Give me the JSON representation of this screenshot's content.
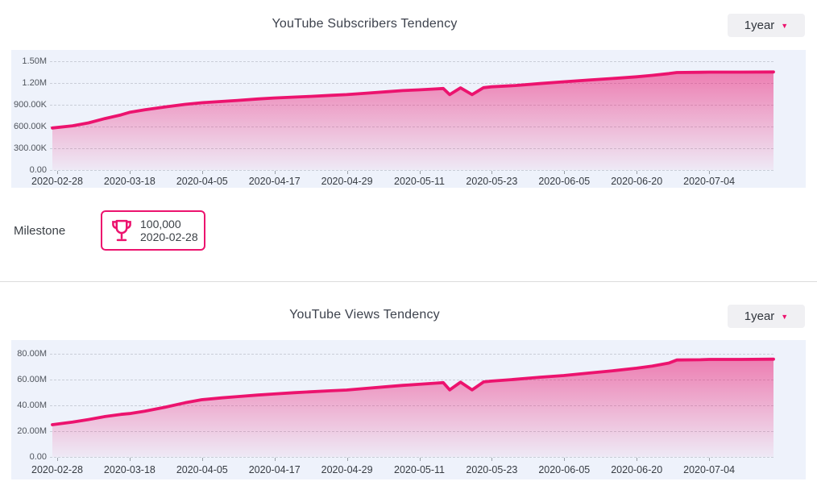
{
  "colors": {
    "accent": "#ec136e",
    "panel_background": "#eef2fb",
    "dropdown_background": "#f0f0f3",
    "gridline": "#c9ced8"
  },
  "sections": [
    {
      "title": "YouTube Subscribers Tendency",
      "range_selector": {
        "value": "1year",
        "icon": "caret-down-icon"
      }
    },
    {
      "title": "YouTube Views Tendency",
      "range_selector": {
        "value": "1year",
        "icon": "caret-down-icon"
      }
    }
  ],
  "milestone": {
    "label": "Milestone",
    "icon": "trophy-icon",
    "value": "100,000",
    "date": "2020-02-28"
  },
  "chart_data": [
    {
      "type": "area",
      "title": "YouTube Subscribers Tendency",
      "xlabel": "",
      "ylabel": "",
      "ylim": [
        0,
        1500000
      ],
      "grid": "horizontal dashed",
      "legend": "none",
      "x_labels": [
        "2020-02-28",
        "2020-03-18",
        "2020-04-05",
        "2020-04-17",
        "2020-04-29",
        "2020-05-11",
        "2020-05-23",
        "2020-06-05",
        "2020-06-20",
        "2020-07-04"
      ],
      "y_ticks": [
        "1.50M",
        "1.20M",
        "900.00K",
        "600.00K",
        "300.00K",
        "0.00"
      ],
      "y_tick_values": [
        1500000,
        1200000,
        900000,
        600000,
        300000,
        0
      ],
      "series": [
        {
          "name": "subscribers",
          "color": "#ec136e",
          "points_xfrac_value": [
            [
              0.0,
              580000
            ],
            [
              0.028,
              610000
            ],
            [
              0.05,
              650000
            ],
            [
              0.073,
              710000
            ],
            [
              0.095,
              760000
            ],
            [
              0.107,
              795000
            ],
            [
              0.128,
              830000
            ],
            [
              0.156,
              870000
            ],
            [
              0.184,
              905000
            ],
            [
              0.207,
              928000
            ],
            [
              0.235,
              945000
            ],
            [
              0.257,
              960000
            ],
            [
              0.285,
              980000
            ],
            [
              0.307,
              993000
            ],
            [
              0.335,
              1005000
            ],
            [
              0.358,
              1015000
            ],
            [
              0.386,
              1030000
            ],
            [
              0.408,
              1040000
            ],
            [
              0.436,
              1060000
            ],
            [
              0.464,
              1080000
            ],
            [
              0.486,
              1095000
            ],
            [
              0.508,
              1106000
            ],
            [
              0.531,
              1118000
            ],
            [
              0.542,
              1125000
            ],
            [
              0.551,
              1040000
            ],
            [
              0.566,
              1133000
            ],
            [
              0.582,
              1040000
            ],
            [
              0.598,
              1136000
            ],
            [
              0.609,
              1148000
            ],
            [
              0.642,
              1165000
            ],
            [
              0.676,
              1192000
            ],
            [
              0.709,
              1217000
            ],
            [
              0.743,
              1240000
            ],
            [
              0.777,
              1262000
            ],
            [
              0.81,
              1285000
            ],
            [
              0.832,
              1305000
            ],
            [
              0.855,
              1330000
            ],
            [
              0.866,
              1344000
            ],
            [
              0.899,
              1348000
            ],
            [
              0.911,
              1350000
            ],
            [
              0.955,
              1350000
            ],
            [
              1.0,
              1352000
            ]
          ]
        }
      ]
    },
    {
      "type": "area",
      "title": "YouTube Views Tendency",
      "xlabel": "",
      "ylabel": "",
      "ylim": [
        0,
        80000000
      ],
      "grid": "horizontal dashed",
      "legend": "none",
      "x_labels": [
        "2020-02-28",
        "2020-03-18",
        "2020-04-05",
        "2020-04-17",
        "2020-04-29",
        "2020-05-11",
        "2020-05-23",
        "2020-06-05",
        "2020-06-20",
        "2020-07-04"
      ],
      "y_ticks": [
        "80.00M",
        "60.00M",
        "40.00M",
        "20.00M",
        "0.00"
      ],
      "y_tick_values": [
        80000000,
        60000000,
        40000000,
        20000000,
        0
      ],
      "series": [
        {
          "name": "views",
          "color": "#ec136e",
          "points_xfrac_value": [
            [
              0.0,
              25000000
            ],
            [
              0.028,
              27000000
            ],
            [
              0.05,
              29000000
            ],
            [
              0.073,
              31300000
            ],
            [
              0.095,
              33000000
            ],
            [
              0.107,
              33600000
            ],
            [
              0.128,
              35500000
            ],
            [
              0.156,
              38500000
            ],
            [
              0.184,
              42000000
            ],
            [
              0.207,
              44400000
            ],
            [
              0.235,
              45800000
            ],
            [
              0.257,
              46800000
            ],
            [
              0.285,
              48000000
            ],
            [
              0.307,
              48800000
            ],
            [
              0.335,
              49800000
            ],
            [
              0.358,
              50500000
            ],
            [
              0.386,
              51300000
            ],
            [
              0.408,
              51900000
            ],
            [
              0.436,
              53200000
            ],
            [
              0.464,
              54500000
            ],
            [
              0.486,
              55500000
            ],
            [
              0.508,
              56300000
            ],
            [
              0.531,
              57200000
            ],
            [
              0.542,
              57600000
            ],
            [
              0.551,
              52000000
            ],
            [
              0.566,
              58000000
            ],
            [
              0.582,
              52000000
            ],
            [
              0.598,
              58200000
            ],
            [
              0.609,
              58800000
            ],
            [
              0.642,
              60200000
            ],
            [
              0.676,
              61800000
            ],
            [
              0.709,
              63100000
            ],
            [
              0.743,
              65000000
            ],
            [
              0.777,
              66800000
            ],
            [
              0.81,
              68800000
            ],
            [
              0.832,
              70500000
            ],
            [
              0.855,
              72800000
            ],
            [
              0.866,
              75200000
            ],
            [
              0.899,
              75400000
            ],
            [
              0.911,
              75600000
            ],
            [
              0.955,
              75600000
            ],
            [
              1.0,
              75800000
            ]
          ]
        }
      ]
    }
  ]
}
